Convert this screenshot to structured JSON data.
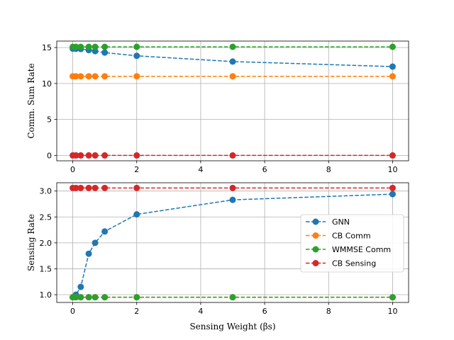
{
  "chart_data": [
    {
      "type": "line",
      "title": "",
      "xlabel": "",
      "ylabel": "Comm. Sum Rate",
      "xlim": [
        -0.5,
        10.5
      ],
      "ylim": [
        -0.75,
        15.9
      ],
      "xticks": [
        0,
        2,
        4,
        6,
        8,
        10
      ],
      "xtick_labels": [
        "0",
        "2",
        "4",
        "6",
        "8",
        "10"
      ],
      "yticks": [
        0,
        5,
        10,
        15
      ],
      "ytick_labels": [
        "0",
        "5",
        "10",
        "15"
      ],
      "grid": true,
      "x": [
        0,
        0.1,
        0.25,
        0.5,
        0.7,
        1,
        2,
        5,
        10
      ],
      "series": [
        {
          "name": "GNN",
          "color": "#1f77b4",
          "values": [
            14.85,
            14.83,
            14.8,
            14.65,
            14.5,
            14.3,
            13.85,
            13.05,
            12.35
          ]
        },
        {
          "name": "CB Comm",
          "color": "#ff7f0e",
          "values": [
            11.0,
            11.0,
            11.0,
            11.0,
            11.0,
            11.0,
            11.0,
            11.0,
            11.0
          ]
        },
        {
          "name": "WMMSE Comm",
          "color": "#2ca02c",
          "values": [
            15.1,
            15.1,
            15.1,
            15.1,
            15.1,
            15.1,
            15.1,
            15.1,
            15.1
          ]
        },
        {
          "name": "CB Sensing",
          "color": "#d62728",
          "values": [
            0.0,
            0.0,
            0.0,
            0.0,
            0.0,
            0.0,
            0.0,
            0.0,
            0.0
          ]
        }
      ]
    },
    {
      "type": "line",
      "title": "",
      "xlabel": "Sensing Weight (βs)",
      "ylabel": "Sensing Rate",
      "xlim": [
        -0.5,
        10.5
      ],
      "ylim": [
        0.85,
        3.16
      ],
      "xticks": [
        0,
        2,
        4,
        6,
        8,
        10
      ],
      "xtick_labels": [
        "0",
        "2",
        "4",
        "6",
        "8",
        "10"
      ],
      "yticks": [
        1.0,
        1.5,
        2.0,
        2.5,
        3.0
      ],
      "ytick_labels": [
        "1.0",
        "1.5",
        "2.0",
        "2.5",
        "3.0"
      ],
      "grid": true,
      "legend": "center-right",
      "x": [
        0,
        0.1,
        0.25,
        0.5,
        0.7,
        1,
        2,
        5,
        10
      ],
      "series": [
        {
          "name": "GNN",
          "color": "#1f77b4",
          "values": [
            0.95,
            1.0,
            1.15,
            1.79,
            2.0,
            2.22,
            2.55,
            2.83,
            2.94
          ]
        },
        {
          "name": "CB Comm",
          "color": "#ff7f0e",
          "values": [
            0.95,
            0.95,
            0.95,
            0.95,
            0.95,
            0.95,
            0.95,
            0.95,
            0.95
          ]
        },
        {
          "name": "WMMSE Comm",
          "color": "#2ca02c",
          "values": [
            0.95,
            0.95,
            0.95,
            0.95,
            0.95,
            0.95,
            0.95,
            0.95,
            0.95
          ]
        },
        {
          "name": "CB Sensing",
          "color": "#d62728",
          "values": [
            3.06,
            3.06,
            3.06,
            3.06,
            3.06,
            3.06,
            3.06,
            3.06,
            3.06
          ]
        }
      ]
    }
  ]
}
